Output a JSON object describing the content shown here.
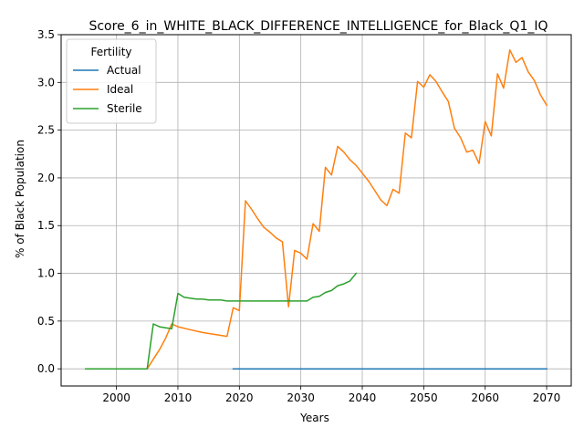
{
  "chart_data": {
    "type": "line",
    "title": "Score_6_in_WHITE_BLACK_DIFFERENCE_INTELLIGENCE_for_Black_Q1_IQ",
    "xlabel": "Years",
    "ylabel": "% of Black Population",
    "xlim": [
      1991,
      2074
    ],
    "ylim": [
      -0.18,
      3.5
    ],
    "xticks": [
      2000,
      2010,
      2020,
      2030,
      2040,
      2050,
      2060,
      2070
    ],
    "yticks": [
      0.0,
      0.5,
      1.0,
      1.5,
      2.0,
      2.5,
      3.0,
      3.5
    ],
    "grid": true,
    "legend": {
      "title": "Fertility",
      "placement": "top-left"
    },
    "series": [
      {
        "name": "Actual",
        "color": "#1f77b4",
        "x": [
          2019,
          2070
        ],
        "y": [
          0.0,
          0.0
        ]
      },
      {
        "name": "Ideal",
        "color": "#ff7f0e",
        "x": [
          1995,
          2005,
          2006,
          2007,
          2008,
          2009,
          2010,
          2012,
          2014,
          2016,
          2018,
          2019,
          2020,
          2021,
          2022,
          2023,
          2024,
          2025,
          2026,
          2027,
          2028,
          2029,
          2030,
          2031,
          2032,
          2033,
          2034,
          2035,
          2036,
          2037,
          2038,
          2039,
          2040,
          2041,
          2042,
          2043,
          2044,
          2045,
          2046,
          2047,
          2048,
          2049,
          2050,
          2051,
          2052,
          2053,
          2054,
          2055,
          2056,
          2057,
          2058,
          2059,
          2060,
          2061,
          2062,
          2063,
          2064,
          2065,
          2066,
          2067,
          2068,
          2069,
          2070
        ],
        "y": [
          0.0,
          0.0,
          0.1,
          0.2,
          0.32,
          0.47,
          0.44,
          0.41,
          0.38,
          0.36,
          0.34,
          0.64,
          0.61,
          1.76,
          1.67,
          1.57,
          1.48,
          1.43,
          1.37,
          1.33,
          0.65,
          1.24,
          1.21,
          1.15,
          1.52,
          1.44,
          2.11,
          2.03,
          2.33,
          2.27,
          2.19,
          2.13,
          2.05,
          1.97,
          1.87,
          1.77,
          1.71,
          1.88,
          1.84,
          2.47,
          2.42,
          3.01,
          2.95,
          3.08,
          3.01,
          2.9,
          2.8,
          2.52,
          2.42,
          2.27,
          2.29,
          2.15,
          2.59,
          2.44,
          3.09,
          2.94,
          3.34,
          3.21,
          3.26,
          3.11,
          3.02,
          2.87,
          2.76
        ]
      },
      {
        "name": "Sterile",
        "color": "#2ca02c",
        "x": [
          1995,
          2005,
          2006,
          2007,
          2008,
          2009,
          2010,
          2011,
          2012,
          2013,
          2014,
          2015,
          2016,
          2017,
          2018,
          2019,
          2020,
          2021,
          2022,
          2023,
          2024,
          2025,
          2026,
          2027,
          2028,
          2029,
          2030,
          2031,
          2032,
          2033,
          2034,
          2035,
          2036,
          2037,
          2038,
          2039
        ],
        "y": [
          0.0,
          0.0,
          0.47,
          0.44,
          0.43,
          0.42,
          0.79,
          0.75,
          0.74,
          0.73,
          0.73,
          0.72,
          0.72,
          0.72,
          0.71,
          0.71,
          0.71,
          0.71,
          0.71,
          0.71,
          0.71,
          0.71,
          0.71,
          0.71,
          0.71,
          0.71,
          0.71,
          0.71,
          0.75,
          0.76,
          0.8,
          0.82,
          0.87,
          0.89,
          0.92,
          1.0
        ]
      }
    ]
  }
}
